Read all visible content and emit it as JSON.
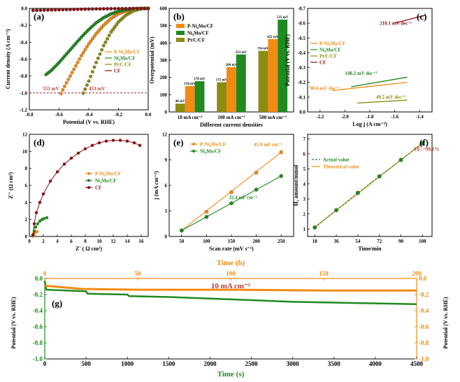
{
  "colors": {
    "porange": "#f28b12",
    "green": "#1f8a1f",
    "olive": "#8c8c10",
    "darkred": "#8b0f0f",
    "red": "#c0392b"
  },
  "chart_data": [
    {
      "panel": "(a)",
      "type": "line",
      "xlabel": "Potential (V vs. RHE)",
      "ylabel": "Current density (A cm⁻²)",
      "xlim": [
        -0.8,
        0.0
      ],
      "ylim": [
        -1.2,
        0.0
      ],
      "xticks": [
        "-0.8",
        "-0.6",
        "-0.4",
        "-0.2",
        "0.0"
      ],
      "yticks": [
        "0.0",
        "-0.2",
        "-0.4",
        "-0.6",
        "-0.8",
        "-1.0",
        "-1.2"
      ],
      "series": [
        {
          "name": "P-Ni4Mo/CF",
          "x": [
            0,
            -0.05,
            -0.1,
            -0.15,
            -0.2,
            -0.25,
            -0.3,
            -0.35,
            -0.4,
            -0.45,
            -0.5,
            -0.55,
            -0.6
          ],
          "y": [
            0,
            -0.002,
            -0.01,
            -0.03,
            -0.065,
            -0.12,
            -0.2,
            -0.3,
            -0.42,
            -0.56,
            -0.72,
            -0.88,
            -1.05
          ]
        },
        {
          "name": "Ni4Mo/CF",
          "x": [
            0,
            -0.05,
            -0.1,
            -0.15,
            -0.2,
            -0.25,
            -0.3,
            -0.35,
            -0.4,
            -0.45,
            -0.5,
            -0.55,
            -0.6,
            -0.65,
            -0.7
          ],
          "y": [
            0,
            -0.001,
            -0.005,
            -0.015,
            -0.035,
            -0.065,
            -0.11,
            -0.17,
            -0.25,
            -0.34,
            -0.44,
            -0.54,
            -0.64,
            -0.73,
            -0.8
          ]
        },
        {
          "name": "Pt/C/CF",
          "x": [
            0,
            -0.05,
            -0.1,
            -0.15,
            -0.2,
            -0.25,
            -0.3,
            -0.35,
            -0.4,
            -0.45
          ],
          "y": [
            0,
            -0.005,
            -0.03,
            -0.08,
            -0.16,
            -0.28,
            -0.44,
            -0.64,
            -0.86,
            -1.05
          ]
        },
        {
          "name": "CF",
          "x": [
            0,
            -0.1,
            -0.2,
            -0.3,
            -0.4,
            -0.5,
            -0.6,
            -0.7,
            -0.8
          ],
          "y": [
            0,
            -0.001,
            -0.003,
            -0.005,
            -0.008,
            -0.012,
            -0.016,
            -0.02,
            -0.025
          ]
        }
      ],
      "annotations": [
        "551 mV",
        "453 mV"
      ],
      "hline": -1.0
    },
    {
      "panel": "(b)",
      "type": "bar",
      "xlabel": "Different current densities",
      "ylabel": "Overpotential (mV)",
      "ylim": [
        0,
        600
      ],
      "yticks": [
        "0",
        "100",
        "200",
        "300",
        "400",
        "500",
        "600"
      ],
      "categories": [
        "10 mA cm⁻²",
        "100 mA cm⁻²",
        "500 mA cm⁻²"
      ],
      "series": [
        {
          "name": "P-Ni4Mo/CF",
          "values": [
            150,
            260,
            422
          ],
          "labels": [
            "150 mV",
            "260 mV",
            "422 mV"
          ]
        },
        {
          "name": "Ni4Mo/CF",
          "values": [
            178,
            333,
            535
          ],
          "labels": [
            "178 mV",
            "333 mV",
            "535 mV"
          ]
        },
        {
          "name": "Pt/C/CF",
          "values": [
            48,
            172,
            354
          ],
          "labels": [
            "48 mV",
            "172 mV",
            "354 mV"
          ]
        }
      ]
    },
    {
      "panel": "(c)",
      "type": "line",
      "xlabel": "Log j (A cm⁻²)",
      "ylabel": "Potential (V vs. RHE)",
      "xlim": [
        -2.3,
        -1.3
      ],
      "ylim": [
        -0.7,
        0.0
      ],
      "xticks": [
        "-2.2",
        "-2.0",
        "-1.8",
        "-1.6",
        "-1.4"
      ],
      "yticks": [
        "-0.7",
        "-0.6",
        "-0.5",
        "-0.4",
        "-0.3",
        "-0.2",
        "-0.1",
        "0.0"
      ],
      "series": [
        {
          "name": "P-Ni4Mo/CF",
          "x": [
            -2.1,
            -1.5
          ],
          "y": [
            -0.145,
            -0.2
          ],
          "tafel": "90.6 mV dec⁻¹"
        },
        {
          "name": "Ni4Mo/CF",
          "x": [
            -1.95,
            -1.5
          ],
          "y": [
            -0.17,
            -0.235
          ],
          "tafel": "148.2 mV dec⁻¹"
        },
        {
          "name": "Pt/C/CF",
          "x": [
            -1.9,
            -1.5
          ],
          "y": [
            -0.06,
            -0.08
          ],
          "tafel": "49.5 mV dec⁻¹"
        },
        {
          "name": "CF",
          "x": [
            -1.6,
            -1.35
          ],
          "y": [
            -0.6,
            -0.655
          ],
          "tafel": "210.1 mV dec⁻¹"
        }
      ]
    },
    {
      "panel": "(d)",
      "type": "scatter",
      "xlabel": "Z' ( Ω cm²)",
      "ylabel": "Z'' (Ω cm²)",
      "xlim": [
        0,
        17
      ],
      "ylim": [
        0,
        12
      ],
      "xticks": [
        "0",
        "2",
        "4",
        "6",
        "8",
        "10",
        "12",
        "14",
        "16"
      ],
      "yticks": [
        "0",
        "2",
        "4",
        "6",
        "8",
        "10",
        "12"
      ],
      "series": [
        {
          "name": "P-Ni4Mo/CF",
          "x": [
            0.5,
            0.6,
            0.7,
            0.8,
            0.9,
            1.0,
            1.1
          ],
          "y": [
            0.05,
            0.2,
            0.35,
            0.45,
            0.5,
            0.55,
            0.58
          ]
        },
        {
          "name": "Ni4Mo/CF",
          "x": [
            0.5,
            0.7,
            0.9,
            1.2,
            1.5,
            1.8,
            2.1,
            2.5
          ],
          "y": [
            0.1,
            0.6,
            1.1,
            1.5,
            1.8,
            2.0,
            2.1,
            2.2
          ]
        },
        {
          "name": "CF",
          "x": [
            0.5,
            0.7,
            1,
            1.5,
            2,
            3,
            4,
            5,
            6,
            7,
            8,
            9,
            10,
            11,
            12,
            13,
            14,
            15,
            15.8
          ],
          "y": [
            0.2,
            1.5,
            2.8,
            4.0,
            5.0,
            6.5,
            7.6,
            8.5,
            9.2,
            9.8,
            10.3,
            10.7,
            11.0,
            11.2,
            11.3,
            11.3,
            11.2,
            11.0,
            10.7
          ]
        }
      ]
    },
    {
      "panel": "(e)",
      "type": "line",
      "xlabel": "Scan rate (mV s⁻¹)",
      "ylabel": "j (mA cm⁻²)",
      "xlim": [
        25,
        275
      ],
      "ylim": [
        0,
        12
      ],
      "xticks": [
        "50",
        "100",
        "150",
        "200",
        "250"
      ],
      "yticks": [
        "0",
        "3",
        "6",
        "9",
        "12"
      ],
      "series": [
        {
          "name": "P-Ni4Mo/CF",
          "x": [
            50,
            100,
            150,
            200,
            250
          ],
          "y": [
            0.7,
            2.9,
            5.2,
            7.5,
            9.9
          ],
          "slope": "45.9 mF cm⁻²"
        },
        {
          "name": "Ni4Mo/CF",
          "x": [
            50,
            100,
            150,
            200,
            250
          ],
          "y": [
            0.7,
            2.3,
            3.9,
            5.5,
            7.1
          ],
          "slope": "32.4 mF cm⁻²"
        }
      ]
    },
    {
      "panel": "(f)",
      "type": "line",
      "xlabel": "Time/min",
      "ylabel": "H₂ amount/mmol",
      "xlim": [
        12,
        116
      ],
      "ylim": [
        0.5,
        7.3
      ],
      "xticks": [
        "18",
        "36",
        "54",
        "72",
        "90",
        "108"
      ],
      "yticks": [
        "1",
        "2",
        "3",
        "4",
        "5",
        "6",
        "7"
      ],
      "series": [
        {
          "name": "Actual value",
          "x": [
            18,
            36,
            54,
            72,
            90,
            108
          ],
          "y": [
            1.1,
            2.25,
            3.4,
            4.5,
            5.6,
            6.7
          ]
        },
        {
          "name": "Theoretical value",
          "x": [
            18,
            36,
            54,
            72,
            90,
            108
          ],
          "y": [
            1.12,
            2.24,
            3.36,
            4.48,
            5.6,
            6.72
          ]
        }
      ],
      "annotation": "FE: ~99.1%"
    },
    {
      "panel": "(g)",
      "type": "line",
      "xlabel": "Time (s)",
      "ylabel": "Potential (V vs. RHE)",
      "x2label": "Time (h)",
      "xlim": [
        0,
        4500
      ],
      "x2lim": [
        0,
        200
      ],
      "ylim": [
        -1.0,
        0.0
      ],
      "xticks": [
        "0",
        "500",
        "1000",
        "1500",
        "2000",
        "2500",
        "3000",
        "3500",
        "4000",
        "4500"
      ],
      "x2ticks": [
        "0",
        "50",
        "100",
        "150",
        "200"
      ],
      "yticks": [
        "0.0",
        "-0.2",
        "-0.4",
        "-0.6",
        "-0.8",
        "-1.0"
      ],
      "series": [
        {
          "name": "green",
          "x": [
            0,
            20,
            500,
            520,
            1000,
            1020,
            1500,
            2000,
            2500,
            3000,
            3500,
            4000,
            4500
          ],
          "y": [
            -0.03,
            -0.14,
            -0.16,
            -0.19,
            -0.2,
            -0.22,
            -0.23,
            -0.25,
            -0.27,
            -0.29,
            -0.3,
            -0.31,
            -0.32
          ]
        },
        {
          "name": "orange",
          "x": [
            0,
            20,
            50,
            100,
            150,
            200
          ],
          "y": [
            -0.09,
            -0.13,
            -0.14,
            -0.14,
            -0.15,
            -0.15
          ]
        }
      ],
      "annotation": "10 mA cm⁻²"
    }
  ]
}
